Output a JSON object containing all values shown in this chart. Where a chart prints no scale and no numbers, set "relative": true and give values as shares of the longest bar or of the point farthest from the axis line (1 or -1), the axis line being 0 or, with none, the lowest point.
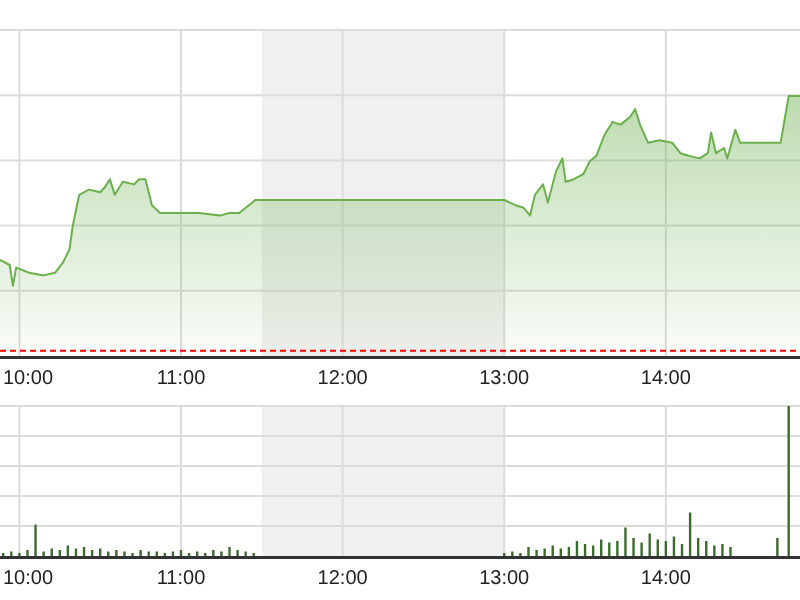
{
  "chart_data": [
    {
      "type": "area",
      "relative": true,
      "color": "#6cb04e",
      "grid": true,
      "xlim": [
        9.88,
        14.83
      ],
      "xticks": [
        {
          "value": 10,
          "label": "10:00"
        },
        {
          "value": 11,
          "label": "11:00"
        },
        {
          "value": 12,
          "label": "12:00"
        },
        {
          "value": 13,
          "label": "13:00"
        },
        {
          "value": 14,
          "label": "14:00"
        }
      ],
      "x": [
        9.88,
        9.94,
        9.96,
        9.98,
        10.06,
        10.15,
        10.22,
        10.27,
        10.31,
        10.33,
        10.37,
        10.43,
        10.5,
        10.53,
        10.56,
        10.59,
        10.64,
        10.71,
        10.74,
        10.78,
        10.82,
        10.87,
        10.93,
        11.05,
        11.11,
        11.24,
        11.3,
        11.36,
        11.46,
        11.5,
        13.0,
        13.07,
        13.12,
        13.16,
        13.19,
        13.24,
        13.27,
        13.32,
        13.36,
        13.38,
        13.43,
        13.49,
        13.53,
        13.57,
        13.62,
        13.67,
        13.72,
        13.78,
        13.81,
        13.84,
        13.89,
        13.96,
        14.04,
        14.09,
        14.14,
        14.21,
        14.26,
        14.28,
        14.31,
        14.36,
        14.38,
        14.43,
        14.46,
        14.58,
        14.71,
        14.76,
        14.83
      ],
      "values": [
        0.37,
        0.35,
        0.27,
        0.34,
        0.32,
        0.31,
        0.32,
        0.36,
        0.41,
        0.5,
        0.62,
        0.64,
        0.63,
        0.65,
        0.68,
        0.62,
        0.67,
        0.66,
        0.68,
        0.68,
        0.58,
        0.55,
        0.55,
        0.55,
        0.55,
        0.54,
        0.55,
        0.55,
        0.6,
        0.6,
        0.6,
        0.58,
        0.57,
        0.54,
        0.62,
        0.66,
        0.59,
        0.71,
        0.76,
        0.67,
        0.68,
        0.7,
        0.75,
        0.77,
        0.85,
        0.9,
        0.89,
        0.92,
        0.95,
        0.89,
        0.82,
        0.83,
        0.82,
        0.78,
        0.77,
        0.76,
        0.78,
        0.86,
        0.78,
        0.8,
        0.76,
        0.87,
        0.82,
        0.82,
        0.82,
        1,
        1
      ],
      "ref_lines": [
        {
          "axis": "y",
          "value": 0.02,
          "color": "#ff0000",
          "line_style": "dashed"
        }
      ],
      "bands": [
        {
          "axis": "x",
          "from": 11.5,
          "to": 13.0,
          "color": "#f0f0f0"
        }
      ]
    },
    {
      "type": "bar",
      "relative": true,
      "color": "#3d6b2f",
      "grid": true,
      "xlim": [
        9.88,
        14.83
      ],
      "xticks": [
        {
          "value": 10,
          "label": "10:00"
        },
        {
          "value": 11,
          "label": "11:00"
        },
        {
          "value": 12,
          "label": "12:00"
        },
        {
          "value": 13,
          "label": "13:00"
        },
        {
          "value": 14,
          "label": "14:00"
        }
      ],
      "x": [
        9.9,
        9.95,
        10.0,
        10.05,
        10.1,
        10.15,
        10.2,
        10.25,
        10.3,
        10.35,
        10.4,
        10.45,
        10.5,
        10.55,
        10.6,
        10.65,
        10.7,
        10.75,
        10.8,
        10.85,
        10.9,
        10.95,
        11.0,
        11.05,
        11.1,
        11.15,
        11.2,
        11.25,
        11.3,
        11.35,
        11.4,
        11.45,
        13.0,
        13.05,
        13.1,
        13.15,
        13.2,
        13.25,
        13.3,
        13.35,
        13.4,
        13.45,
        13.5,
        13.55,
        13.6,
        13.65,
        13.7,
        13.75,
        13.8,
        13.85,
        13.9,
        13.95,
        14.0,
        14.05,
        14.1,
        14.15,
        14.2,
        14.25,
        14.3,
        14.35,
        14.4,
        14.69,
        14.76
      ],
      "values": [
        0.02,
        0.03,
        0.02,
        0.04,
        0.21,
        0.03,
        0.05,
        0.04,
        0.07,
        0.05,
        0.06,
        0.04,
        0.05,
        0.03,
        0.04,
        0.03,
        0.02,
        0.04,
        0.03,
        0.03,
        0.02,
        0.03,
        0.04,
        0.02,
        0.03,
        0.02,
        0.04,
        0.03,
        0.06,
        0.04,
        0.03,
        0.02,
        0.02,
        0.03,
        0.02,
        0.06,
        0.04,
        0.05,
        0.07,
        0.05,
        0.06,
        0.1,
        0.08,
        0.07,
        0.11,
        0.09,
        0.1,
        0.19,
        0.12,
        0.09,
        0.15,
        0.11,
        0.1,
        0.13,
        0.08,
        0.29,
        0.12,
        0.1,
        0.07,
        0.08,
        0.06,
        0.12,
        1
      ],
      "bands": [
        {
          "axis": "x",
          "from": 11.5,
          "to": 13.0,
          "color": "#f0f0f0"
        }
      ]
    }
  ]
}
